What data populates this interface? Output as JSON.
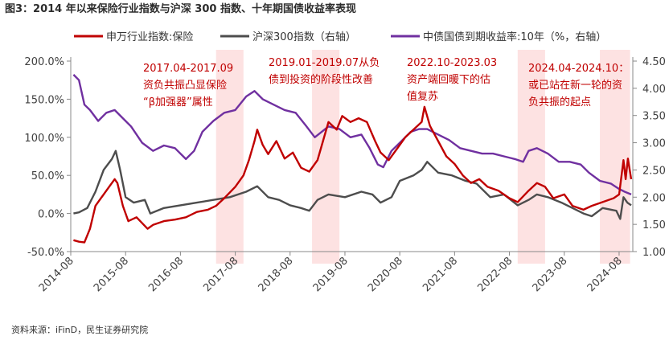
{
  "title": "图3：2014 年以来保险行业指数与沪深 300 指数、十年期国债收益率表现",
  "source": "资料来源：iFinD，民生证券研究院",
  "chart_data": {
    "type": "line",
    "x_ticks": [
      "2014-08",
      "2015-08",
      "2016-08",
      "2017-08",
      "2018-08",
      "2019-08",
      "2020-08",
      "2021-08",
      "2022-08",
      "2023-08",
      "2024-08"
    ],
    "y_left": {
      "ticks": [
        "200.0%",
        "150.0%",
        "100.0%",
        "50.0%",
        "0.0%",
        "-50.0%"
      ],
      "range": [
        -50,
        200
      ]
    },
    "y_right": {
      "ticks": [
        "4.50",
        "4.00",
        "3.50",
        "3.00",
        "2.50",
        "2.00",
        "1.50",
        "1.00"
      ],
      "range": [
        1.0,
        4.5
      ]
    },
    "legend": [
      {
        "name": "申万行业指数:保险",
        "color": "#c00000"
      },
      {
        "name": "沪深300指数（右轴）",
        "color": "#4d4d4d"
      },
      {
        "name": "中债国债到期收益率:10年（%，右轴）",
        "color": "#7030a0"
      }
    ],
    "annotations": [
      {
        "lines": [
          "2017.04-2017.09",
          "资负共振凸显保险",
          "“β加强器”属性"
        ]
      },
      {
        "lines": [
          "2019.01-2019.07从负",
          "债到投资的阶段性改善"
        ]
      },
      {
        "lines": [
          "2022.10-2023.03",
          "资产端回暖下的估",
          "值复苏"
        ]
      },
      {
        "lines": [
          "2024.04-2024.10：",
          "或已站在新一轮的资",
          "负共振的起点"
        ]
      }
    ],
    "shaded_periods": [
      {
        "start": 2017.25,
        "end": 2017.75
      },
      {
        "start": 2019.0,
        "end": 2019.5
      },
      {
        "start": 2022.75,
        "end": 2023.25
      },
      {
        "start": 2024.25,
        "end": 2024.8
      }
    ],
    "series": [
      {
        "name": "申万行业指数:保险",
        "axis": "left",
        "color": "#c00000",
        "points": [
          [
            2014.65,
            -35
          ],
          [
            2014.75,
            -37
          ],
          [
            2014.85,
            -38
          ],
          [
            2014.95,
            -20
          ],
          [
            2015.05,
            10
          ],
          [
            2015.15,
            20
          ],
          [
            2015.3,
            35
          ],
          [
            2015.4,
            45
          ],
          [
            2015.45,
            40
          ],
          [
            2015.55,
            10
          ],
          [
            2015.65,
            -10
          ],
          [
            2015.8,
            -5
          ],
          [
            2016.0,
            -20
          ],
          [
            2016.1,
            -15
          ],
          [
            2016.3,
            -10
          ],
          [
            2016.5,
            -8
          ],
          [
            2016.7,
            -5
          ],
          [
            2016.9,
            2
          ],
          [
            2017.1,
            5
          ],
          [
            2017.25,
            10
          ],
          [
            2017.4,
            20
          ],
          [
            2017.6,
            35
          ],
          [
            2017.75,
            50
          ],
          [
            2017.85,
            70
          ],
          [
            2017.95,
            95
          ],
          [
            2018.0,
            110
          ],
          [
            2018.1,
            90
          ],
          [
            2018.2,
            78
          ],
          [
            2018.35,
            95
          ],
          [
            2018.5,
            72
          ],
          [
            2018.65,
            80
          ],
          [
            2018.8,
            60
          ],
          [
            2018.95,
            55
          ],
          [
            2019.1,
            70
          ],
          [
            2019.2,
            95
          ],
          [
            2019.3,
            120
          ],
          [
            2019.45,
            110
          ],
          [
            2019.55,
            128
          ],
          [
            2019.7,
            120
          ],
          [
            2019.85,
            125
          ],
          [
            2020.0,
            120
          ],
          [
            2020.15,
            95
          ],
          [
            2020.25,
            80
          ],
          [
            2020.4,
            70
          ],
          [
            2020.55,
            85
          ],
          [
            2020.7,
            100
          ],
          [
            2020.85,
            110
          ],
          [
            2021.0,
            120
          ],
          [
            2021.05,
            140
          ],
          [
            2021.15,
            115
          ],
          [
            2021.3,
            95
          ],
          [
            2021.45,
            75
          ],
          [
            2021.6,
            65
          ],
          [
            2021.75,
            50
          ],
          [
            2021.9,
            40
          ],
          [
            2022.05,
            45
          ],
          [
            2022.2,
            35
          ],
          [
            2022.4,
            30
          ],
          [
            2022.6,
            20
          ],
          [
            2022.75,
            15
          ],
          [
            2022.95,
            30
          ],
          [
            2023.1,
            40
          ],
          [
            2023.25,
            35
          ],
          [
            2023.4,
            20
          ],
          [
            2023.6,
            25
          ],
          [
            2023.75,
            10
          ],
          [
            2023.95,
            5
          ],
          [
            2024.1,
            10
          ],
          [
            2024.3,
            15
          ],
          [
            2024.5,
            20
          ],
          [
            2024.6,
            25
          ],
          [
            2024.68,
            70
          ],
          [
            2024.72,
            45
          ],
          [
            2024.76,
            72
          ],
          [
            2024.82,
            45
          ]
        ]
      },
      {
        "name": "沪深300指数（右轴）",
        "axis": "right",
        "color": "#4d4d4d",
        "points": [
          [
            2014.65,
            1.7
          ],
          [
            2014.75,
            1.72
          ],
          [
            2014.9,
            1.8
          ],
          [
            2015.05,
            2.1
          ],
          [
            2015.2,
            2.5
          ],
          [
            2015.35,
            2.7
          ],
          [
            2015.42,
            2.85
          ],
          [
            2015.5,
            2.5
          ],
          [
            2015.6,
            2.0
          ],
          [
            2015.75,
            1.9
          ],
          [
            2015.95,
            1.95
          ],
          [
            2016.05,
            1.7
          ],
          [
            2016.3,
            1.8
          ],
          [
            2016.6,
            1.85
          ],
          [
            2016.9,
            1.9
          ],
          [
            2017.2,
            1.95
          ],
          [
            2017.5,
            2.0
          ],
          [
            2017.8,
            2.1
          ],
          [
            2018.0,
            2.2
          ],
          [
            2018.2,
            2.0
          ],
          [
            2018.4,
            1.95
          ],
          [
            2018.6,
            1.85
          ],
          [
            2018.8,
            1.8
          ],
          [
            2018.95,
            1.75
          ],
          [
            2019.1,
            1.95
          ],
          [
            2019.3,
            2.05
          ],
          [
            2019.6,
            2.0
          ],
          [
            2019.9,
            2.1
          ],
          [
            2020.1,
            2.05
          ],
          [
            2020.25,
            1.9
          ],
          [
            2020.45,
            2.0
          ],
          [
            2020.6,
            2.3
          ],
          [
            2020.85,
            2.4
          ],
          [
            2021.0,
            2.5
          ],
          [
            2021.1,
            2.65
          ],
          [
            2021.3,
            2.45
          ],
          [
            2021.55,
            2.4
          ],
          [
            2021.8,
            2.3
          ],
          [
            2022.0,
            2.25
          ],
          [
            2022.25,
            2.0
          ],
          [
            2022.5,
            2.05
          ],
          [
            2022.75,
            1.85
          ],
          [
            2022.95,
            1.95
          ],
          [
            2023.1,
            2.05
          ],
          [
            2023.3,
            2.0
          ],
          [
            2023.55,
            1.9
          ],
          [
            2023.75,
            1.8
          ],
          [
            2023.95,
            1.7
          ],
          [
            2024.1,
            1.65
          ],
          [
            2024.3,
            1.8
          ],
          [
            2024.55,
            1.75
          ],
          [
            2024.62,
            1.6
          ],
          [
            2024.68,
            2.0
          ],
          [
            2024.75,
            1.9
          ],
          [
            2024.82,
            1.85
          ]
        ]
      },
      {
        "name": "中债国债到期收益率:10年（%，右轴）",
        "axis": "right",
        "color": "#7030a0",
        "points": [
          [
            2014.65,
            4.25
          ],
          [
            2014.75,
            4.15
          ],
          [
            2014.85,
            3.7
          ],
          [
            2014.95,
            3.6
          ],
          [
            2015.1,
            3.4
          ],
          [
            2015.25,
            3.55
          ],
          [
            2015.4,
            3.6
          ],
          [
            2015.55,
            3.45
          ],
          [
            2015.7,
            3.3
          ],
          [
            2015.9,
            3.0
          ],
          [
            2016.1,
            2.85
          ],
          [
            2016.3,
            2.95
          ],
          [
            2016.5,
            2.9
          ],
          [
            2016.7,
            2.7
          ],
          [
            2016.85,
            2.85
          ],
          [
            2017.0,
            3.2
          ],
          [
            2017.2,
            3.4
          ],
          [
            2017.4,
            3.55
          ],
          [
            2017.6,
            3.6
          ],
          [
            2017.8,
            3.85
          ],
          [
            2017.95,
            3.95
          ],
          [
            2018.1,
            3.8
          ],
          [
            2018.3,
            3.7
          ],
          [
            2018.5,
            3.6
          ],
          [
            2018.7,
            3.55
          ],
          [
            2018.9,
            3.3
          ],
          [
            2019.05,
            3.1
          ],
          [
            2019.3,
            3.3
          ],
          [
            2019.5,
            3.25
          ],
          [
            2019.7,
            3.1
          ],
          [
            2019.9,
            3.15
          ],
          [
            2020.05,
            2.9
          ],
          [
            2020.2,
            2.6
          ],
          [
            2020.3,
            2.55
          ],
          [
            2020.45,
            2.85
          ],
          [
            2020.6,
            3.0
          ],
          [
            2020.8,
            3.2
          ],
          [
            2020.95,
            3.25
          ],
          [
            2021.1,
            3.25
          ],
          [
            2021.3,
            3.15
          ],
          [
            2021.5,
            3.05
          ],
          [
            2021.7,
            2.9
          ],
          [
            2021.9,
            2.85
          ],
          [
            2022.1,
            2.8
          ],
          [
            2022.3,
            2.8
          ],
          [
            2022.5,
            2.75
          ],
          [
            2022.7,
            2.7
          ],
          [
            2022.85,
            2.65
          ],
          [
            2022.95,
            2.85
          ],
          [
            2023.1,
            2.9
          ],
          [
            2023.3,
            2.8
          ],
          [
            2023.5,
            2.65
          ],
          [
            2023.7,
            2.65
          ],
          [
            2023.9,
            2.6
          ],
          [
            2024.05,
            2.45
          ],
          [
            2024.25,
            2.3
          ],
          [
            2024.45,
            2.25
          ],
          [
            2024.6,
            2.15
          ],
          [
            2024.7,
            2.1
          ],
          [
            2024.82,
            2.05
          ]
        ]
      }
    ]
  }
}
